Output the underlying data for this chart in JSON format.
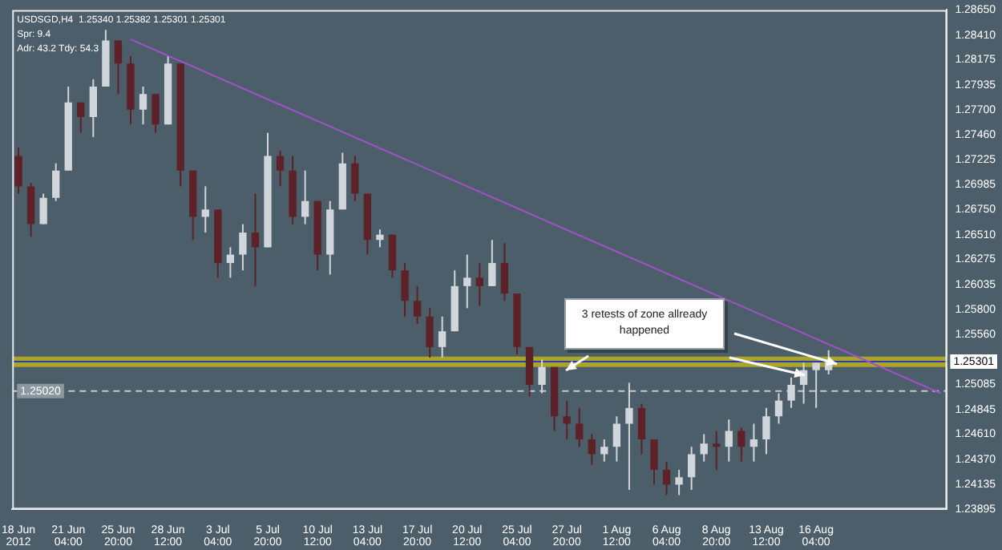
{
  "chart_data": {
    "type": "candlestick",
    "title": "USDSGD,H4  1.25340 1.25382 1.25301 1.25301",
    "annotations": [
      "Spr: 9.4",
      "Adr: 43.2 Tdy: 54.3",
      "3 retests of zone allready happened"
    ],
    "categories": [
      "18 Jun 2012",
      null,
      null,
      null,
      "21 Jun 04:00",
      null,
      null,
      null,
      "25 Jun 20:00",
      null,
      null,
      null,
      "28 Jun 12:00",
      null,
      null,
      null,
      "3 Jul 04:00",
      null,
      null,
      null,
      "5 Jul 20:00",
      null,
      null,
      null,
      "10 Jul 12:00",
      null,
      null,
      null,
      "13 Jul 04:00",
      null,
      null,
      null,
      "17 Jul 20:00",
      null,
      null,
      null,
      "20 Jul 12:00",
      null,
      null,
      null,
      "25 Jul 04:00",
      null,
      null,
      null,
      "27 Jul 20:00",
      null,
      null,
      null,
      "1 Aug 12:00",
      null,
      null,
      null,
      "6 Aug 04:00",
      null,
      null,
      null,
      "8 Aug 20:00",
      null,
      null,
      null,
      "13 Aug 12:00",
      null,
      null,
      null,
      "16 Aug 04:00",
      null,
      null,
      null,
      null,
      null,
      null,
      null,
      null,
      null,
      null
    ],
    "ohlc": [
      [
        1.2726,
        1.2734,
        1.269,
        1.2697
      ],
      [
        1.2697,
        1.27,
        1.2649,
        1.2661
      ],
      [
        1.2661,
        1.269,
        1.2661,
        1.2686
      ],
      [
        1.2686,
        1.2719,
        1.2683,
        1.2712
      ],
      [
        1.2712,
        1.2792,
        1.2712,
        1.2777
      ],
      [
        1.2777,
        1.2777,
        1.2748,
        1.2763
      ],
      [
        1.2763,
        1.2799,
        1.2744,
        1.2792
      ],
      [
        1.2792,
        1.2846,
        1.2792,
        1.2836
      ],
      [
        1.2836,
        1.2836,
        1.2785,
        1.2814
      ],
      [
        1.2814,
        1.2821,
        1.2756,
        1.277
      ],
      [
        1.277,
        1.2792,
        1.2756,
        1.2785
      ],
      [
        1.2785,
        1.2785,
        1.2748,
        1.2756
      ],
      [
        1.2756,
        1.2821,
        1.2756,
        1.2814
      ],
      [
        1.2814,
        1.2814,
        1.2697,
        1.2712
      ],
      [
        1.2712,
        1.2712,
        1.2646,
        1.2668
      ],
      [
        1.2668,
        1.2697,
        1.2653,
        1.2675
      ],
      [
        1.2675,
        1.2675,
        1.261,
        1.2624
      ],
      [
        1.2624,
        1.2639,
        1.261,
        1.2632
      ],
      [
        1.2632,
        1.2661,
        1.2617,
        1.2653
      ],
      [
        1.2653,
        1.269,
        1.2602,
        1.2639
      ],
      [
        1.2639,
        1.2748,
        1.2639,
        1.2726
      ],
      [
        1.2726,
        1.2731,
        1.2697,
        1.2712
      ],
      [
        1.2712,
        1.2726,
        1.2661,
        1.2668
      ],
      [
        1.2668,
        1.2712,
        1.2661,
        1.2683
      ],
      [
        1.2683,
        1.2683,
        1.2617,
        1.2632
      ],
      [
        1.2632,
        1.2683,
        1.2613,
        1.2675
      ],
      [
        1.2675,
        1.2729,
        1.2675,
        1.2719
      ],
      [
        1.2719,
        1.2726,
        1.2683,
        1.269
      ],
      [
        1.269,
        1.269,
        1.2632,
        1.2646
      ],
      [
        1.2646,
        1.2656,
        1.2639,
        1.2651
      ],
      [
        1.2651,
        1.2651,
        1.261,
        1.2617
      ],
      [
        1.2617,
        1.2624,
        1.2573,
        1.2588
      ],
      [
        1.2588,
        1.2602,
        1.2566,
        1.2573
      ],
      [
        1.2573,
        1.2581,
        1.2534,
        1.2544
      ],
      [
        1.2544,
        1.2573,
        1.2534,
        1.2559
      ],
      [
        1.2559,
        1.2617,
        1.2559,
        1.2602
      ],
      [
        1.2602,
        1.2632,
        1.2581,
        1.261
      ],
      [
        1.261,
        1.2624,
        1.2583,
        1.2602
      ],
      [
        1.2602,
        1.2646,
        1.2602,
        1.2624
      ],
      [
        1.2624,
        1.2643,
        1.2588,
        1.2595
      ],
      [
        1.2595,
        1.2595,
        1.2537,
        1.2544
      ],
      [
        1.2544,
        1.2544,
        1.2497,
        1.2508
      ],
      [
        1.2508,
        1.2532,
        1.25,
        1.2525
      ],
      [
        1.2525,
        1.2525,
        1.2464,
        1.2478
      ],
      [
        1.2478,
        1.2493,
        1.2456,
        1.2471
      ],
      [
        1.2471,
        1.2486,
        1.2449,
        1.2456
      ],
      [
        1.2456,
        1.2461,
        1.2432,
        1.2442
      ],
      [
        1.2442,
        1.2456,
        1.2435,
        1.2449
      ],
      [
        1.2449,
        1.2478,
        1.2435,
        1.2471
      ],
      [
        1.2471,
        1.251,
        1.2408,
        1.2486
      ],
      [
        1.2486,
        1.249,
        1.2442,
        1.2456
      ],
      [
        1.2456,
        1.2456,
        1.2413,
        1.2427
      ],
      [
        1.2427,
        1.2435,
        1.2403,
        1.2413
      ],
      [
        1.2413,
        1.2427,
        1.2403,
        1.242
      ],
      [
        1.242,
        1.2449,
        1.2408,
        1.2442
      ],
      [
        1.2442,
        1.2461,
        1.2435,
        1.2452
      ],
      [
        1.2452,
        1.2464,
        1.2427,
        1.2449
      ],
      [
        1.2449,
        1.2475,
        1.2435,
        1.2464
      ],
      [
        1.2464,
        1.2467,
        1.2435,
        1.2449
      ],
      [
        1.2449,
        1.2471,
        1.2435,
        1.2456
      ],
      [
        1.2456,
        1.2486,
        1.2442,
        1.2478
      ],
      [
        1.2478,
        1.25,
        1.2471,
        1.2493
      ],
      [
        1.2493,
        1.2515,
        1.2486,
        1.2508
      ],
      [
        1.2508,
        1.2529,
        1.249,
        1.2522
      ],
      [
        1.2522,
        1.2529,
        1.2486,
        1.2529
      ],
      [
        1.2522,
        1.2541,
        1.2518,
        1.253
      ],
      null,
      null,
      null,
      null,
      null,
      null,
      null,
      null,
      null
    ],
    "colors": [
      "#5c2228",
      "#5c2228",
      "#d0d6da",
      "#d0d6da",
      "#d0d6da",
      "#5c2228",
      "#d0d6da",
      "#d0d6da",
      "#5c2228",
      "#5c2228",
      "#d0d6da",
      "#5c2228",
      "#d0d6da",
      "#5c2228",
      "#5c2228",
      "#d0d6da",
      "#5c2228",
      "#d0d6da",
      "#d0d6da",
      "#5c2228",
      "#d0d6da",
      "#5c2228",
      "#5c2228",
      "#d0d6da",
      "#5c2228",
      "#d0d6da",
      "#d0d6da",
      "#5c2228",
      "#5c2228",
      "#d0d6da",
      "#5c2228",
      "#5c2228",
      "#5c2228",
      "#5c2228",
      "#d0d6da",
      "#d0d6da",
      "#d0d6da",
      "#5c2228",
      "#d0d6da",
      "#5c2228",
      "#5c2228",
      "#5c2228",
      "#d0d6da",
      "#5c2228",
      "#5c2228",
      "#5c2228",
      "#5c2228",
      "#d0d6da",
      "#d0d6da",
      "#d0d6da",
      "#5c2228",
      "#5c2228",
      "#5c2228",
      "#d0d6da",
      "#d0d6da",
      "#d0d6da",
      "#5c2228",
      "#d0d6da",
      "#5c2228",
      "#d0d6da",
      "#d0d6da",
      "#d0d6da",
      "#d0d6da",
      "#d0d6da",
      "#d0d6da",
      "#d0d6da",
      null,
      null,
      null,
      null,
      null,
      null,
      null,
      null,
      null
    ],
    "series": [
      {
        "type": "line",
        "color": "#a050c8",
        "values": [
          null,
          null,
          null,
          null,
          null,
          null,
          null,
          null,
          null,
          1.2837,
          null,
          null,
          null,
          null,
          null,
          null,
          null,
          null,
          null,
          null,
          null,
          null,
          null,
          null,
          null,
          null,
          null,
          null,
          null,
          null,
          null,
          null,
          null,
          null,
          null,
          null,
          null,
          null,
          null,
          null,
          null,
          null,
          null,
          null,
          null,
          null,
          null,
          null,
          null,
          null,
          null,
          null,
          null,
          null,
          null,
          null,
          null,
          null,
          null,
          null,
          null,
          null,
          null,
          null,
          null,
          null,
          null,
          null,
          null,
          null,
          null,
          null,
          null,
          null,
          1.25
        ]
      }
    ],
    "ylim": [
      1.23895,
      1.2865
    ],
    "yticks": [
      {
        "value": 1.2865,
        "label": "1.28650"
      },
      {
        "value": 1.2841,
        "label": "1.28410"
      },
      {
        "value": 1.28175,
        "label": "1.28175"
      },
      {
        "value": 1.27935,
        "label": "1.27935"
      },
      {
        "value": 1.277,
        "label": "1.27700"
      },
      {
        "value": 1.2746,
        "label": "1.27460"
      },
      {
        "value": 1.27225,
        "label": "1.27225"
      },
      {
        "value": 1.26985,
        "label": "1.26985"
      },
      {
        "value": 1.2675,
        "label": "1.26750"
      },
      {
        "value": 1.2651,
        "label": "1.26510"
      },
      {
        "value": 1.26275,
        "label": "1.26275"
      },
      {
        "value": 1.26035,
        "label": "1.26035"
      },
      {
        "value": 1.258,
        "label": "1.25800"
      },
      {
        "value": 1.2556,
        "label": "1.25560"
      },
      {
        "value": 1.25085,
        "label": "1.25085"
      },
      {
        "value": 1.24845,
        "label": "1.24845"
      },
      {
        "value": 1.2461,
        "label": "1.24610"
      },
      {
        "value": 1.2437,
        "label": "1.24370"
      },
      {
        "value": 1.24135,
        "label": "1.24135"
      },
      {
        "value": 1.23895,
        "label": "1.23895"
      }
    ],
    "bands": [
      {
        "axis": "y",
        "from": 1.2525,
        "to": 1.2535,
        "color": "#aaa52a"
      }
    ],
    "ref_lines": [
      {
        "axis": "y",
        "value": 1.25301,
        "label": "1.25301",
        "color": "#2a3fa8",
        "line_style": "solid"
      },
      {
        "axis": "y",
        "value": 1.2502,
        "label": "1.25020",
        "color": "#c8c8c8",
        "line_style": "dashed"
      }
    ],
    "grid": false,
    "legend": false
  }
}
